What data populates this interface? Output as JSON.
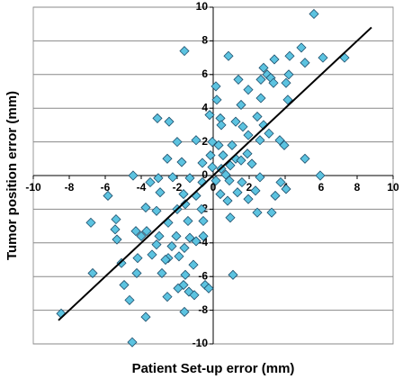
{
  "chart_data": {
    "type": "scatter",
    "xlabel": "Patient Set-up error (mm)",
    "ylabel": "Tumor position error (mm)",
    "x": [
      5.6,
      -1.6,
      4.9,
      7.3,
      6.1,
      5.1,
      0.85,
      3.4,
      4.25,
      2.8,
      3.0,
      3.2,
      3.35,
      2.65,
      4.2,
      4.05,
      1.4,
      1.95,
      0.15,
      0.2,
      4.15,
      2.65,
      1.55,
      -0.2,
      0.4,
      0.45,
      1.25,
      1.65,
      2.45,
      2.8,
      1.95,
      3.1,
      2.6,
      3.7,
      -3.1,
      -2.45,
      -2.0,
      -0.95,
      -0.05,
      0.3,
      1.05,
      3.95,
      0.55,
      1.25,
      0.95,
      1.55,
      1.9,
      2.15,
      5.1,
      -0.15,
      -0.6,
      -0.05,
      0.45,
      0.7,
      0.15,
      5.95,
      -4.45,
      -2.55,
      -1.75,
      -3.5,
      -3.05,
      -2.25,
      -1.3,
      -0.6,
      0.9,
      1.6,
      2.6,
      1.35,
      2.35,
      3.75,
      3.45,
      4.05,
      -2.95,
      -1.65,
      -0.95,
      0.4,
      0.8,
      1.95,
      2.45,
      3.25,
      -5.85,
      -3.75,
      -3.15,
      -2.0,
      -1.55,
      -0.65,
      -6.8,
      -5.4,
      -5.45,
      -4.3,
      -3.7,
      -2.5,
      -1.4,
      -0.55,
      0.95,
      -4.0,
      -3.0,
      -2.05,
      -1.3,
      -5.35,
      -3.15,
      -2.3,
      -1.6,
      -0.95,
      -0.55,
      -4.2,
      -3.4,
      -2.5,
      -1.9,
      -5.1,
      -6.7,
      -2.85,
      -1.55,
      1.1,
      -4.25,
      -4.95,
      -1.65,
      -0.45,
      -0.25,
      -1.95,
      -1.35,
      -1.05,
      -4.65,
      -2.55,
      -1.6,
      -3.75,
      -8.45,
      -4.5,
      -1.1,
      -2.65
    ],
    "y": [
      9.6,
      7.4,
      7.6,
      7.0,
      7.0,
      6.7,
      7.1,
      6.9,
      7.1,
      6.4,
      6.0,
      5.8,
      5.5,
      5.7,
      6.0,
      5.5,
      5.7,
      5.1,
      5.3,
      4.5,
      4.5,
      4.6,
      4.2,
      3.6,
      3.4,
      3.0,
      3.2,
      2.9,
      3.5,
      3.0,
      2.4,
      2.5,
      2.1,
      2.1,
      3.4,
      3.2,
      2.0,
      2.1,
      2.0,
      1.8,
      1.8,
      1.8,
      1.2,
      1.0,
      0.6,
      0.9,
      1.3,
      0.7,
      1.0,
      1.2,
      0.75,
      0.5,
      0.4,
      0.05,
      -0.3,
      0,
      0,
      1.0,
      0.8,
      -0.4,
      -0.15,
      -0.1,
      -0.15,
      -0.4,
      -0.3,
      -0.4,
      -0.1,
      -1.0,
      -0.9,
      -0.4,
      -1.2,
      -0.8,
      -1.0,
      -1.1,
      -1.2,
      -1.1,
      -1.5,
      -1.4,
      -2.2,
      -2.2,
      -1.2,
      -1.9,
      -2.1,
      -2.0,
      -1.7,
      -2.0,
      -2.8,
      -2.6,
      -3.2,
      -3.3,
      -3.3,
      -2.8,
      -2.7,
      -2.7,
      -2.5,
      -3.6,
      -3.6,
      -3.6,
      -3.7,
      -3.8,
      -4.1,
      -4.2,
      -4.3,
      -3.9,
      -3.6,
      -4.9,
      -4.7,
      -4.9,
      -4.8,
      -5.2,
      -5.8,
      -5.8,
      -5.9,
      -5.9,
      -5.8,
      -6.5,
      -6.5,
      -6.5,
      -6.7,
      -6.7,
      -6.9,
      -7.1,
      -7.4,
      -7.2,
      -8.1,
      -8.4,
      -8.2,
      -9.9,
      -5.3,
      -5.0
    ],
    "color": "#5cc3e0",
    "reference_line": {
      "x": [
        -8.6,
        8.8
      ],
      "y": [
        -8.6,
        8.8
      ]
    },
    "xlim": [
      -10,
      10
    ],
    "ylim": [
      -10,
      10
    ],
    "xticks": [
      -10,
      -8,
      -6,
      -4,
      -2,
      0,
      2,
      4,
      6,
      8,
      10
    ],
    "yticks": [
      -10,
      -8,
      -6,
      -4,
      -2,
      0,
      2,
      4,
      6,
      8,
      10
    ],
    "grid": true
  }
}
